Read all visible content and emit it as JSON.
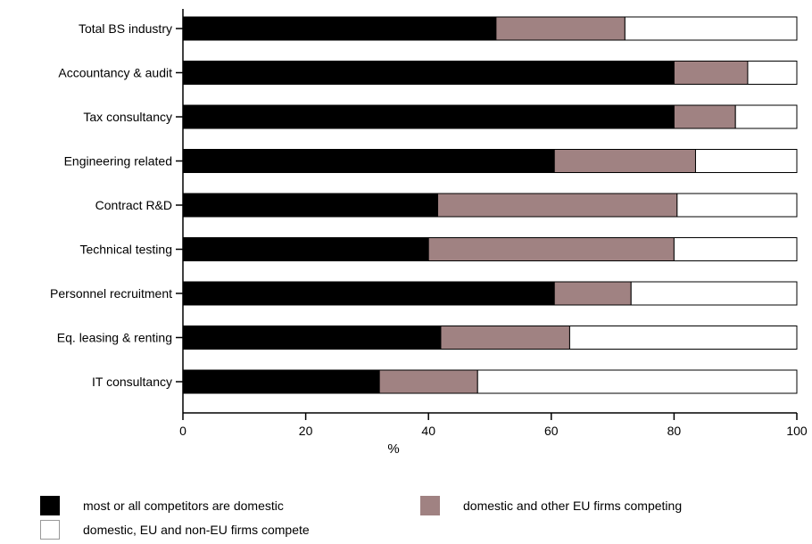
{
  "chart_data": {
    "type": "bar",
    "orientation": "horizontal",
    "stacked": true,
    "title": "",
    "xlabel": "%",
    "ylabel": "",
    "xlim": [
      0,
      100
    ],
    "xticks": [
      "0",
      "20",
      "40",
      "60",
      "80",
      "100"
    ],
    "grid": false,
    "legend_position": "bottom",
    "categories": [
      "Total BS industry",
      "Accountancy & audit",
      "Tax consultancy",
      "Engineering related",
      "Contract R&D",
      "Technical testing",
      "Personnel recruitment",
      "Eq. leasing & renting",
      "IT consultancy"
    ],
    "series": [
      {
        "name": "most or all competitors are domestic",
        "color": "#000000",
        "values": [
          51,
          80,
          80,
          60.5,
          41.5,
          40,
          60.5,
          42,
          32
        ]
      },
      {
        "name": "domestic and other EU firms competing",
        "color": "#a08282",
        "values": [
          21,
          12,
          10,
          23,
          39,
          40,
          12.5,
          21,
          16
        ]
      },
      {
        "name": "domestic, EU and non-EU firms compete",
        "color": "#ffffff",
        "values": [
          28,
          8,
          10,
          16.5,
          19.5,
          20,
          27,
          37,
          52
        ]
      }
    ]
  },
  "legend": {
    "items": [
      {
        "label": "most or all competitors are domestic",
        "color": "#000000"
      },
      {
        "label": "domestic and other EU firms competing",
        "color": "#a08282"
      },
      {
        "label": "domestic, EU and non-EU firms compete",
        "color": "#ffffff"
      }
    ]
  }
}
